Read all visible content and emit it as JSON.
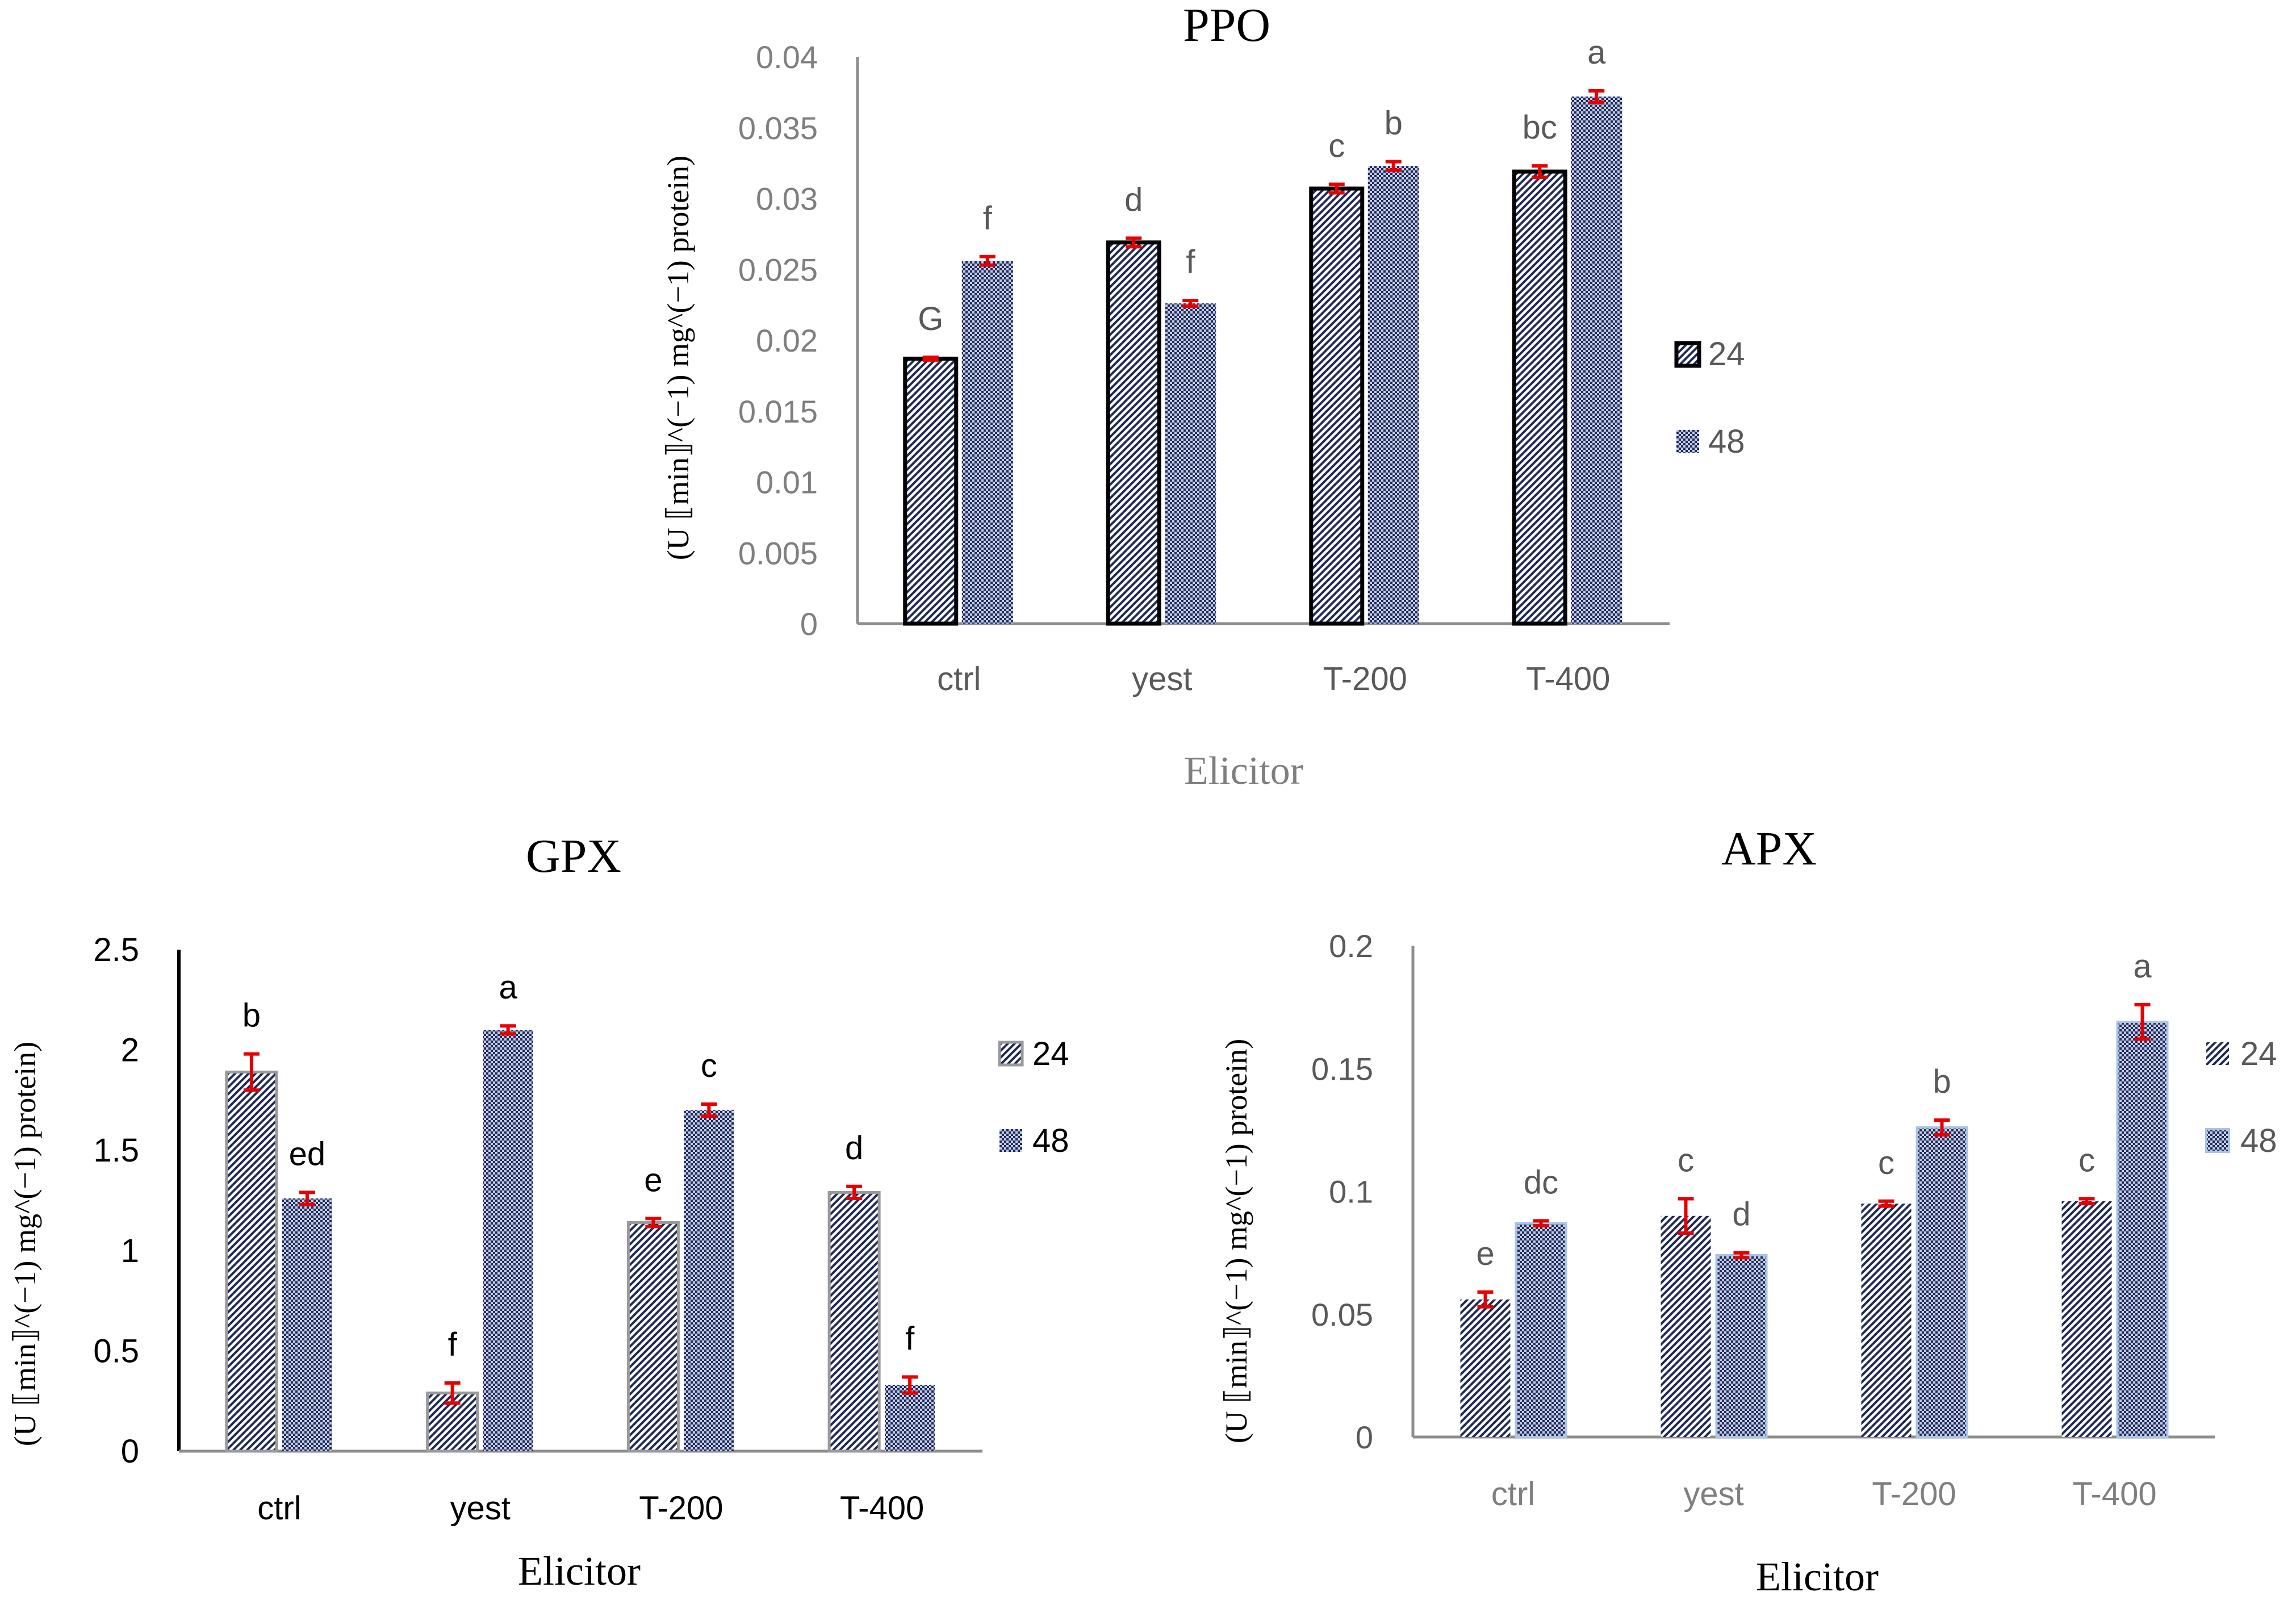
{
  "chart_data": [
    {
      "id": "ppo",
      "type": "bar",
      "title": "PPO",
      "xlabel": "Elicitor",
      "ylabel": "(U ⟦min⟧^(−1) mg^(−1) protein)",
      "categories": [
        "ctrl",
        "yest",
        "T-200",
        "T-400"
      ],
      "ylim": [
        0,
        0.04
      ],
      "yticks": [
        "0",
        "0.005",
        "0.01",
        "0.015",
        "0.02",
        "0.025",
        "0.03",
        "0.035",
        "0.04"
      ],
      "grid": false,
      "legend_position": "right",
      "series": [
        {
          "name": "24",
          "values": [
            0.0187,
            0.0269,
            0.0307,
            0.0319
          ],
          "errors": [
            0.0001,
            0.0003,
            0.0003,
            0.0004
          ],
          "letters": [
            "G",
            "d",
            "c",
            "bc"
          ]
        },
        {
          "name": "48",
          "values": [
            0.0256,
            0.0226,
            0.0323,
            0.0372
          ],
          "errors": [
            0.0003,
            0.0002,
            0.0003,
            0.0004
          ],
          "letters": [
            "f",
            "f",
            "b",
            "a"
          ]
        }
      ]
    },
    {
      "id": "gpx",
      "type": "bar",
      "title": "GPX",
      "xlabel": "Elicitor",
      "ylabel": "(U ⟦min⟧^(−1) mg^(−1) protein)",
      "categories": [
        "ctrl",
        "yest",
        "T-200",
        "T-400"
      ],
      "ylim": [
        0,
        2.5
      ],
      "yticks": [
        "0",
        "0.5",
        "1",
        "1.5",
        "2",
        "2.5"
      ],
      "grid": false,
      "legend_position": "right",
      "series": [
        {
          "name": "24",
          "values": [
            1.89,
            0.29,
            1.14,
            1.29
          ],
          "errors": [
            0.09,
            0.05,
            0.02,
            0.03
          ],
          "letters": [
            "b",
            "f",
            "e",
            "d"
          ]
        },
        {
          "name": "48",
          "values": [
            1.26,
            2.1,
            1.7,
            0.33
          ],
          "errors": [
            0.03,
            0.02,
            0.03,
            0.04
          ],
          "letters": [
            "ed",
            "a",
            "c",
            "f"
          ]
        }
      ]
    },
    {
      "id": "apx",
      "type": "bar",
      "title": "APX",
      "xlabel": "Elicitor",
      "ylabel": "(U ⟦min⟧^(−1) mg^(−1) protein)",
      "categories": [
        "ctrl",
        "yest",
        "T-200",
        "T-400"
      ],
      "ylim": [
        0,
        0.2
      ],
      "yticks": [
        "0",
        "0.05",
        "0.1",
        "0.15",
        "0.2"
      ],
      "grid": false,
      "legend_position": "right",
      "series": [
        {
          "name": "24",
          "values": [
            0.056,
            0.09,
            0.095,
            0.096
          ],
          "errors": [
            0.003,
            0.007,
            0.001,
            0.001
          ],
          "letters": [
            "e",
            "c",
            "c",
            "c"
          ]
        },
        {
          "name": "48",
          "values": [
            0.087,
            0.074,
            0.126,
            0.169
          ],
          "errors": [
            0.001,
            0.001,
            0.003,
            0.007
          ],
          "letters": [
            "dc",
            "d",
            "b",
            "a"
          ]
        }
      ]
    }
  ],
  "colors": {
    "bar24_border": "#000000",
    "bar48_fill": "#2b3a6b",
    "error_bar": "#e60000",
    "axis": "#8c8c8c",
    "tick_text": "#595959",
    "title_text": "#000000"
  }
}
